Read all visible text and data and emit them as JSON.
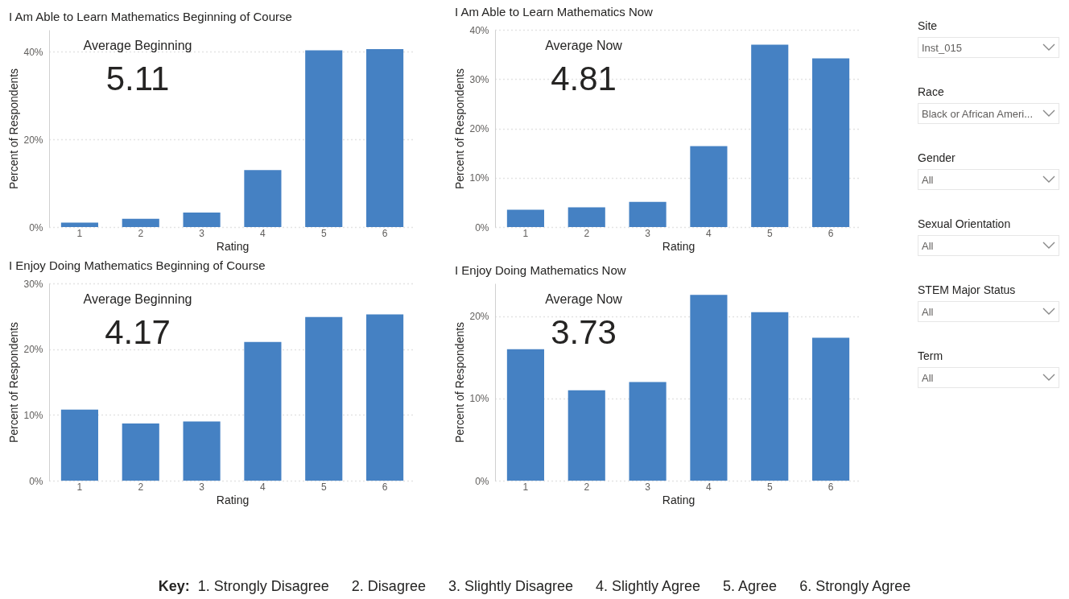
{
  "chart_data": [
    {
      "type": "bar",
      "title": "I Am Able to Learn Mathematics Beginning of Course",
      "xlabel": "Rating",
      "ylabel": "Percent of Respondents",
      "annotations": [
        "Average Beginning",
        "5.11"
      ],
      "categories": [
        "1",
        "2",
        "3",
        "4",
        "5",
        "6"
      ],
      "values": [
        1.0,
        1.9,
        3.3,
        13.0,
        40.3,
        40.6
      ],
      "color": "#4581c3",
      "ylim": [
        0,
        45
      ],
      "yticks": [
        {
          "value": 0,
          "label": "0%"
        },
        {
          "value": 20,
          "label": "20%"
        },
        {
          "value": 40,
          "label": "40%"
        }
      ],
      "grid": "y"
    },
    {
      "type": "bar",
      "title": "I Am Able to Learn Mathematics Now",
      "xlabel": "Rating",
      "ylabel": "Percent of Respondents",
      "annotations": [
        "Average Now",
        "4.81"
      ],
      "categories": [
        "1",
        "2",
        "3",
        "4",
        "5",
        "6"
      ],
      "values": [
        3.5,
        4.0,
        5.1,
        16.4,
        37.0,
        34.2
      ],
      "color": "#4581c3",
      "ylim": [
        0,
        40
      ],
      "yticks": [
        {
          "value": 0,
          "label": "0%"
        },
        {
          "value": 10,
          "label": "10%"
        },
        {
          "value": 20,
          "label": "20%"
        },
        {
          "value": 30,
          "label": "30%"
        },
        {
          "value": 40,
          "label": "40%"
        }
      ],
      "grid": "y"
    },
    {
      "type": "bar",
      "title": "I Enjoy Doing Mathematics Beginning of Course",
      "xlabel": "Rating",
      "ylabel": "Percent of Respondents",
      "annotations": [
        "Average Beginning",
        "4.17"
      ],
      "categories": [
        "1",
        "2",
        "3",
        "4",
        "5",
        "6"
      ],
      "values": [
        10.8,
        8.7,
        9.0,
        21.1,
        24.9,
        25.3
      ],
      "color": "#4581c3",
      "ylim": [
        0,
        30
      ],
      "yticks": [
        {
          "value": 0,
          "label": "0%"
        },
        {
          "value": 10,
          "label": "10%"
        },
        {
          "value": 20,
          "label": "20%"
        },
        {
          "value": 30,
          "label": "30%"
        }
      ],
      "grid": "y"
    },
    {
      "type": "bar",
      "title": "I Enjoy Doing Mathematics Now",
      "xlabel": "Rating",
      "ylabel": "Percent of Respondents",
      "annotations": [
        "Average Now",
        "3.73"
      ],
      "categories": [
        "1",
        "2",
        "3",
        "4",
        "5",
        "6"
      ],
      "values": [
        16.0,
        11.0,
        12.0,
        22.6,
        20.5,
        17.4
      ],
      "color": "#4581c3",
      "ylim": [
        0,
        24
      ],
      "yticks": [
        {
          "value": 0,
          "label": "0%"
        },
        {
          "value": 10,
          "label": "10%"
        },
        {
          "value": 20,
          "label": "20%"
        }
      ],
      "grid": "y"
    },
    {
      "type": "other",
      "annotations": [
        "Site",
        "Inst_015",
        "Race",
        "Black or African Ameri...",
        "Gender",
        "All",
        "Sexual Orientation",
        "All",
        "STEM Major Status",
        "All",
        "Term",
        "All"
      ]
    },
    {
      "type": "other",
      "annotations": [
        "Key:",
        "1.  Strongly Disagree",
        "2. Disagree",
        "3. Slightly Disagree",
        "4. Slightly Agree",
        "5. Agree",
        "6. Strongly Agree"
      ]
    }
  ]
}
